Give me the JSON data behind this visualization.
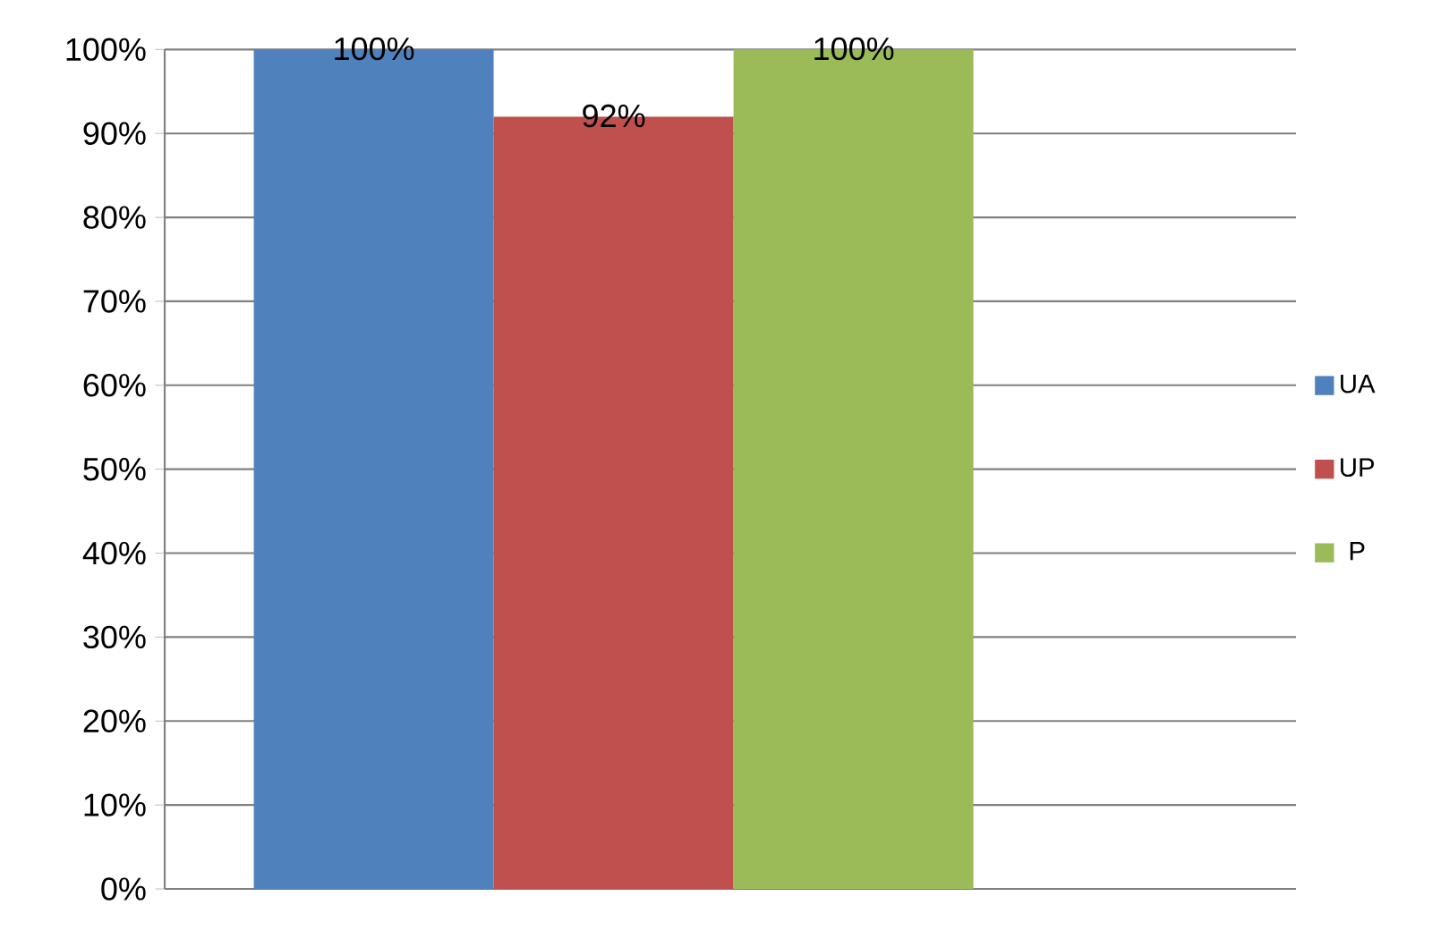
{
  "chart_data": {
    "type": "bar",
    "categories": [
      null
    ],
    "series": [
      {
        "name": "UA",
        "color": "#4f81bd",
        "values": [
          100
        ],
        "value_labels": [
          "100%"
        ]
      },
      {
        "name": "UP",
        "color": "#c0504d",
        "values": [
          92
        ],
        "value_labels": [
          "92%"
        ]
      },
      {
        "name": "P",
        "color": "#9bbb59",
        "values": [
          100
        ],
        "value_labels": [
          "100%"
        ]
      }
    ],
    "ylim": [
      0,
      100
    ],
    "yticks": [
      {
        "value": 0,
        "label": "0%"
      },
      {
        "value": 10,
        "label": "10%"
      },
      {
        "value": 20,
        "label": "20%"
      },
      {
        "value": 30,
        "label": "30%"
      },
      {
        "value": 40,
        "label": "40%"
      },
      {
        "value": 50,
        "label": "50%"
      },
      {
        "value": 60,
        "label": "60%"
      },
      {
        "value": 70,
        "label": "70%"
      },
      {
        "value": 80,
        "label": "80%"
      },
      {
        "value": 90,
        "label": "90%"
      },
      {
        "value": 100,
        "label": "100%"
      }
    ],
    "grid": "y",
    "legend": "right"
  }
}
